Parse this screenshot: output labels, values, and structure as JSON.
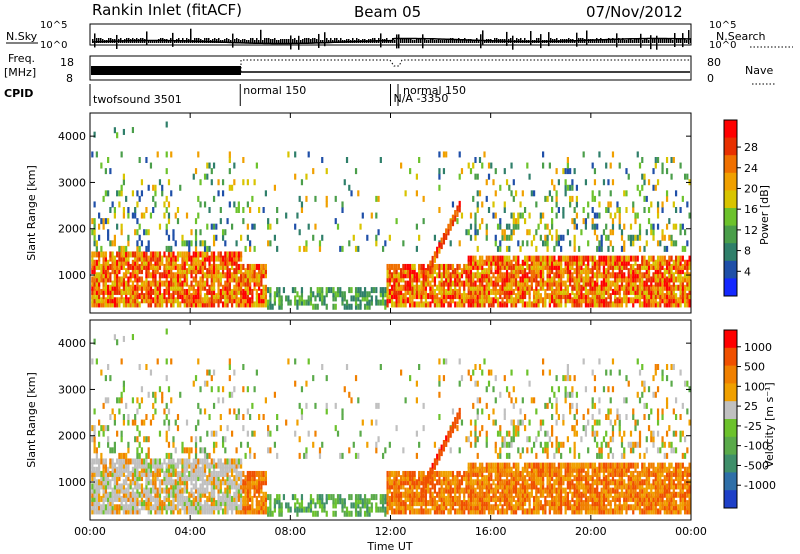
{
  "header": {
    "station": "Rankin Inlet (fitACF)",
    "beam": "Beam 05",
    "date": "07/Nov/2012"
  },
  "chart_data": [
    {
      "type": "line",
      "name": "summary-panel",
      "labels": {
        "nsky": "N.Sky",
        "nsearch": "N.Search",
        "freq_line1": "Freq.",
        "freq_line2": "[MHz]",
        "nave": "Nave",
        "cpid": "CPID"
      },
      "nsky_ticks": [
        "10^5",
        "10^0"
      ],
      "nsearch_ticks": [
        "10^5",
        "10^0"
      ],
      "freq_ticks": [
        18,
        8
      ],
      "nave_ticks": [
        80,
        0
      ],
      "cpid_segments": [
        {
          "label": "twofsound 3501",
          "start_hour": 0.0
        },
        {
          "label": "normal 150",
          "start_hour": 6.0
        },
        {
          "label": "N/A -3350",
          "start_hour": 12.0
        },
        {
          "label": "normal 150",
          "start_hour": 12.3
        }
      ]
    },
    {
      "type": "heatmap",
      "name": "power-panel",
      "ylabel": "Slant Range [km]",
      "y_ticks": [
        1000,
        2000,
        3000,
        4000
      ],
      "ylim": [
        180,
        4500
      ],
      "colorbar_label": "Power [dB]",
      "colorbar_ticks": [
        "4",
        "8",
        "12",
        "16",
        "20",
        "24",
        "28"
      ],
      "colorbar_colors": [
        "#1428ff",
        "#1f4fa8",
        "#2f7f6a",
        "#4a9e4a",
        "#6cc22c",
        "#d8c400",
        "#f0a000",
        "#f07000",
        "#e83000",
        "#ff0000"
      ]
    },
    {
      "type": "heatmap",
      "name": "velocity-panel",
      "ylabel": "Slant Range [km]",
      "y_ticks": [
        1000,
        2000,
        3000,
        4000
      ],
      "ylim": [
        180,
        4500
      ],
      "colorbar_label": "Velocity [m s⁻¹]",
      "colorbar_ticks": [
        "1000",
        "500",
        "100",
        "25",
        "-25",
        "-100",
        "-500",
        "-1000"
      ],
      "colorbar_colors": [
        "#1e40c8",
        "#2f6fa8",
        "#3f8f6a",
        "#5aaa4a",
        "#6cc22c",
        "#c0c0c0",
        "#f0a000",
        "#f08000",
        "#f05000",
        "#ff0000"
      ]
    }
  ],
  "x_axis": {
    "label": "Time UT",
    "ticks": [
      "00:00",
      "04:00",
      "08:00",
      "12:00",
      "16:00",
      "20:00",
      "00:00"
    ],
    "xlim_hours": [
      0,
      24
    ]
  }
}
